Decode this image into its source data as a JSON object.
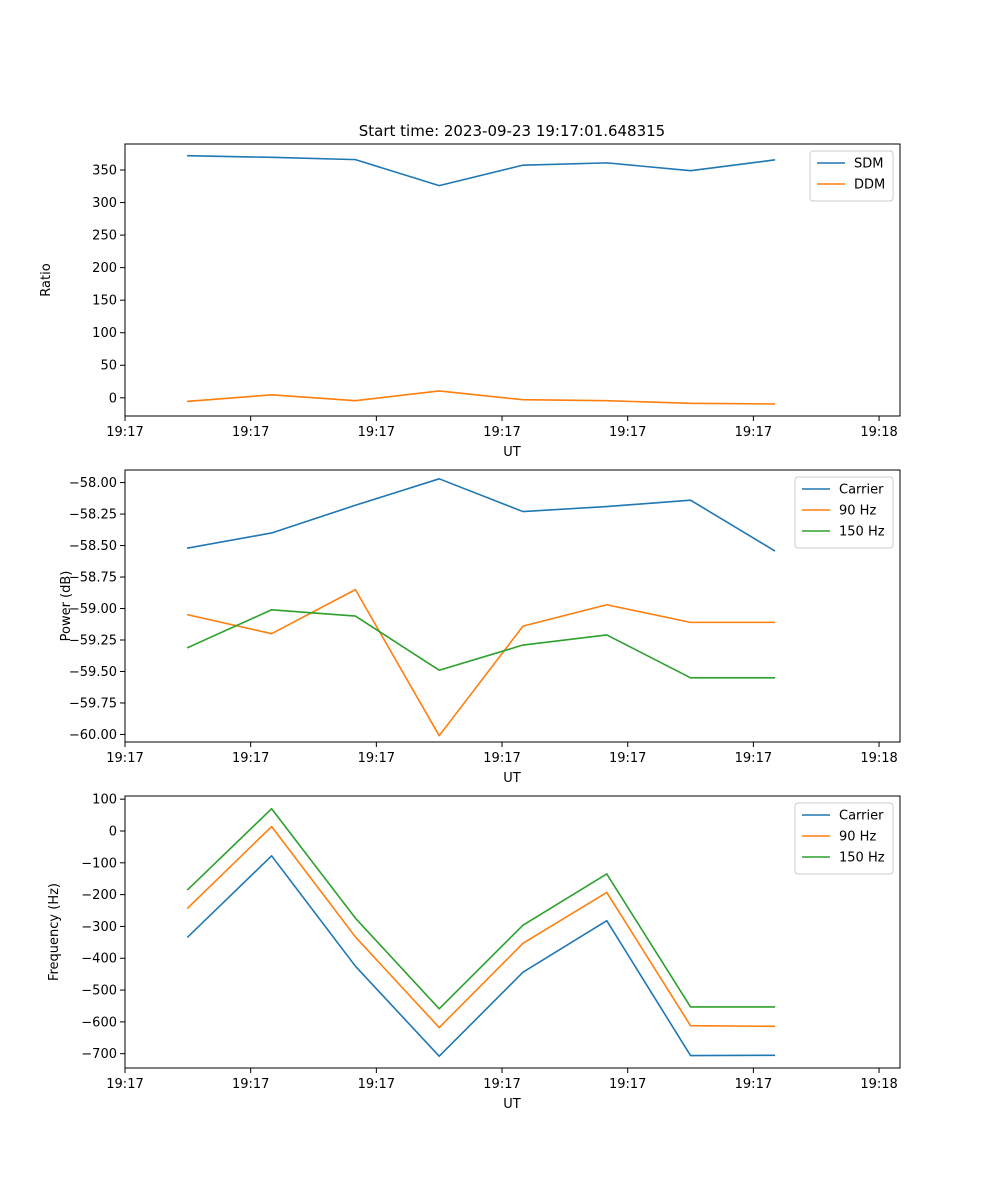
{
  "chart_data": [
    {
      "type": "line",
      "title": "Start time: 2023-09-23 19:17:01.648315",
      "xlabel": "UT",
      "ylabel": "Ratio",
      "x": [
        0,
        1,
        2,
        3,
        4,
        5,
        6,
        7
      ],
      "xlim": [
        -0.75,
        8.5
      ],
      "x_ticks": [
        -0.75,
        0.75,
        2.25,
        3.75,
        5.25,
        6.75,
        8.25
      ],
      "x_tick_labels": [
        "19:17",
        "19:17",
        "19:17",
        "19:17",
        "19:17",
        "19:17",
        "19:18"
      ],
      "ylim": [
        -28,
        390
      ],
      "y_ticks": [
        0,
        50,
        100,
        150,
        200,
        250,
        300,
        350
      ],
      "y_tick_labels": [
        "0",
        "50",
        "100",
        "150",
        "200",
        "250",
        "300",
        "350"
      ],
      "legend": "top-right",
      "series": [
        {
          "name": "SDM",
          "color": "#1f77b4",
          "values": [
            372,
            369.5,
            366,
            326,
            357.5,
            361,
            349,
            365.5
          ]
        },
        {
          "name": "DDM",
          "color": "#ff7f0e",
          "values": [
            -5.5,
            4.5,
            -4.5,
            10.5,
            -3,
            -4.5,
            -8.5,
            -9.5
          ]
        }
      ]
    },
    {
      "type": "line",
      "title": "",
      "xlabel": "UT",
      "ylabel": "Power (dB)",
      "x": [
        0,
        1,
        2,
        3,
        4,
        5,
        6,
        7
      ],
      "xlim": [
        -0.75,
        8.5
      ],
      "x_ticks": [
        -0.75,
        0.75,
        2.25,
        3.75,
        5.25,
        6.75,
        8.25
      ],
      "x_tick_labels": [
        "19:17",
        "19:17",
        "19:17",
        "19:17",
        "19:17",
        "19:17",
        "19:18"
      ],
      "ylim": [
        -60.06,
        -57.9
      ],
      "y_ticks": [
        -60.0,
        -59.75,
        -59.5,
        -59.25,
        -59.0,
        -58.75,
        -58.5,
        -58.25,
        -58.0
      ],
      "y_tick_labels": [
        "−60.00",
        "−59.75",
        "−59.50",
        "−59.25",
        "−59.00",
        "−58.75",
        "−58.50",
        "−58.25",
        "−58.00"
      ],
      "legend": "top-right",
      "series": [
        {
          "name": "Carrier",
          "color": "#1f77b4",
          "values": [
            -58.52,
            -58.4,
            -58.18,
            -57.97,
            -58.23,
            -58.19,
            -58.14,
            -58.54
          ]
        },
        {
          "name": "90 Hz",
          "color": "#ff7f0e",
          "values": [
            -59.05,
            -59.2,
            -58.85,
            -60.01,
            -59.14,
            -58.97,
            -59.11,
            -59.11
          ]
        },
        {
          "name": "150 Hz",
          "color": "#2ca02c",
          "values": [
            -59.31,
            -59.01,
            -59.06,
            -59.49,
            -59.29,
            -59.21,
            -59.55,
            -59.55
          ]
        }
      ]
    },
    {
      "type": "line",
      "title": "",
      "xlabel": "UT",
      "ylabel": "Frequency (Hz)",
      "x": [
        0,
        1,
        2,
        3,
        4,
        5,
        6,
        7
      ],
      "xlim": [
        -0.75,
        8.5
      ],
      "x_ticks": [
        -0.75,
        0.75,
        2.25,
        3.75,
        5.25,
        6.75,
        8.25
      ],
      "x_tick_labels": [
        "19:17",
        "19:17",
        "19:17",
        "19:17",
        "19:17",
        "19:17",
        "19:18"
      ],
      "ylim": [
        -745,
        110
      ],
      "y_ticks": [
        -700,
        -600,
        -500,
        -400,
        -300,
        -200,
        -100,
        0,
        100
      ],
      "y_tick_labels": [
        "−700",
        "−600",
        "−500",
        "−400",
        "−300",
        "−200",
        "−100",
        "0",
        "100"
      ],
      "legend": "top-right",
      "series": [
        {
          "name": "Carrier",
          "color": "#1f77b4",
          "values": [
            -333,
            -78,
            -425,
            -708,
            -444,
            -282,
            -706,
            -705
          ]
        },
        {
          "name": "90 Hz",
          "color": "#ff7f0e",
          "values": [
            -242,
            14,
            -333,
            -618,
            -353,
            -193,
            -612,
            -614
          ]
        },
        {
          "name": "150 Hz",
          "color": "#2ca02c",
          "values": [
            -184,
            70,
            -274,
            -559,
            -296,
            -135,
            -553,
            -553
          ]
        }
      ]
    }
  ]
}
